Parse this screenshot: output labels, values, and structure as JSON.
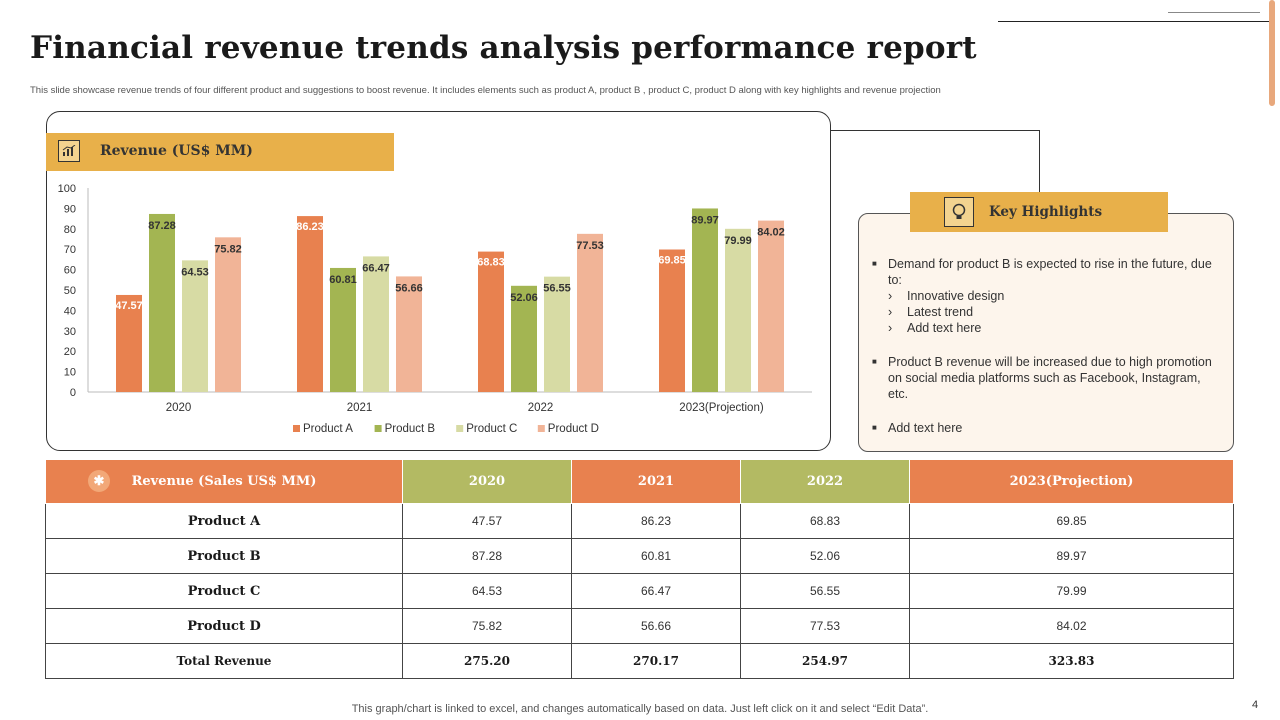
{
  "title": "Financial revenue trends analysis performance report",
  "subtitle": "This slide showcase revenue trends of four different product and suggestions to boost revenue. It includes elements such as product A, product B , product C, product D along with key highlights and revenue projection",
  "chart_header": "Revenue (US$ MM)",
  "chart_data": {
    "type": "bar",
    "categories": [
      "2020",
      "2021",
      "2022",
      "2023(Projection)"
    ],
    "series": [
      {
        "name": "Product A",
        "color": "#e8814f",
        "values": [
          47.57,
          86.23,
          68.83,
          69.85
        ]
      },
      {
        "name": "Product B",
        "color": "#a3b552",
        "values": [
          87.28,
          60.81,
          52.06,
          89.97
        ]
      },
      {
        "name": "Product C",
        "color": "#d7dba4",
        "values": [
          64.53,
          66.47,
          56.55,
          79.99
        ]
      },
      {
        "name": "Product D",
        "color": "#f1b497",
        "values": [
          75.82,
          56.66,
          77.53,
          84.02
        ]
      }
    ],
    "ylim": [
      0,
      100
    ],
    "yticks": [
      0,
      10,
      20,
      30,
      40,
      50,
      60,
      70,
      80,
      90,
      100
    ],
    "legend_position": "bottom",
    "grid": false
  },
  "highlights": {
    "title": "Key Highlights",
    "items": [
      {
        "text": "Demand for product B is expected to rise in the future, due to:",
        "sub": [
          "Innovative design",
          "Latest trend",
          "Add text here"
        ]
      },
      {
        "text": "Product B revenue will be increased due to high promotion on social media platforms such as Facebook, Instagram, etc.",
        "sub": []
      },
      {
        "text": "Add text here",
        "sub": []
      }
    ]
  },
  "table": {
    "headers": [
      "Revenue (Sales US$ MM)",
      "2020",
      "2021",
      "2022",
      "2023(Projection)"
    ],
    "header_colors": [
      "#e8814f",
      "#b3ba63",
      "#e8814f",
      "#b3ba63",
      "#e8814f"
    ],
    "rows": [
      [
        "Product A",
        "47.57",
        "86.23",
        "68.83",
        "69.85"
      ],
      [
        "Product B",
        "87.28",
        "60.81",
        "52.06",
        "89.97"
      ],
      [
        "Product C",
        "64.53",
        "66.47",
        "56.55",
        "79.99"
      ],
      [
        "Product D",
        "75.82",
        "56.66",
        "77.53",
        "84.02"
      ]
    ],
    "total": [
      "Total Revenue",
      "275.20",
      "270.17",
      "254.97",
      "323.83"
    ]
  },
  "footer_note": "This graph/chart is linked to excel, and changes automatically based on data. Just left click on it and select “Edit Data”.",
  "page_number": "4"
}
